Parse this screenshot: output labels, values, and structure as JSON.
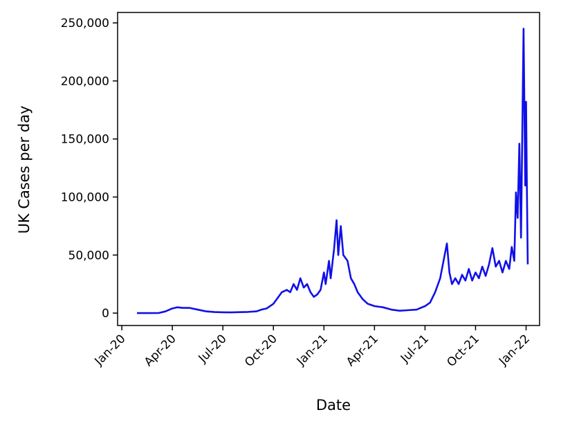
{
  "chart_data": {
    "type": "line",
    "x_label": "Date",
    "y_label": "UK Cases per day",
    "xlim": [
      -0.25,
      24.8
    ],
    "ylim": [
      -10700,
      259000
    ],
    "xticks": [
      {
        "value": 0,
        "label": "Jan-20"
      },
      {
        "value": 3,
        "label": "Apr-20"
      },
      {
        "value": 6,
        "label": "Jul-20"
      },
      {
        "value": 9,
        "label": "Oct-20"
      },
      {
        "value": 12,
        "label": "Jan-21"
      },
      {
        "value": 15,
        "label": "Apr-21"
      },
      {
        "value": 18,
        "label": "Jul-21"
      },
      {
        "value": 21,
        "label": "Oct-21"
      },
      {
        "value": 24,
        "label": "Jan-22"
      }
    ],
    "yticks": [
      0,
      {
        "value": 50000,
        "label": "50,000"
      },
      {
        "value": 100000,
        "label": "100,000"
      },
      {
        "value": 150000,
        "label": "150,000"
      },
      {
        "value": 200000,
        "label": "200,000"
      },
      {
        "value": 250000,
        "label": "250,000"
      }
    ],
    "series": [
      {
        "color": "#1010e8",
        "x": [
          0.9,
          1.5,
          2.2,
          2.6,
          3.0,
          3.3,
          3.6,
          4.0,
          4.5,
          5.0,
          5.5,
          6.0,
          6.5,
          7.0,
          7.5,
          8.0,
          8.3,
          8.6,
          9.0,
          9.3,
          9.5,
          9.8,
          10.0,
          10.2,
          10.4,
          10.6,
          10.8,
          11.0,
          11.2,
          11.4,
          11.6,
          11.8,
          12.0,
          12.1,
          12.3,
          12.4,
          12.6,
          12.75,
          12.85,
          13.0,
          13.15,
          13.4,
          13.6,
          13.8,
          14.0,
          14.3,
          14.6,
          15.0,
          15.5,
          16.0,
          16.5,
          17.0,
          17.5,
          18.0,
          18.3,
          18.6,
          18.9,
          19.1,
          19.3,
          19.45,
          19.6,
          19.8,
          20.0,
          20.2,
          20.4,
          20.6,
          20.8,
          21.0,
          21.2,
          21.4,
          21.6,
          21.8,
          22.0,
          22.2,
          22.4,
          22.6,
          22.8,
          23.0,
          23.15,
          23.3,
          23.4,
          23.5,
          23.6,
          23.7,
          23.85,
          23.95,
          24.0,
          24.05,
          24.1
        ],
        "values": [
          0,
          0,
          100,
          1500,
          4000,
          5000,
          4500,
          4500,
          3000,
          1500,
          900,
          700,
          600,
          800,
          1000,
          1500,
          3000,
          4000,
          8000,
          14000,
          18000,
          20000,
          18000,
          25000,
          20000,
          30000,
          22000,
          25000,
          18000,
          14000,
          16000,
          20000,
          35000,
          25000,
          45000,
          30000,
          55000,
          80000,
          50000,
          75000,
          50000,
          45000,
          30000,
          25000,
          18000,
          12000,
          8000,
          6000,
          5000,
          3000,
          2000,
          2500,
          3000,
          6000,
          9000,
          18000,
          30000,
          45000,
          60000,
          35000,
          25000,
          30000,
          25000,
          33000,
          28000,
          38000,
          28000,
          35000,
          30000,
          40000,
          32000,
          42000,
          56000,
          40000,
          45000,
          35000,
          45000,
          38000,
          57000,
          45000,
          104000,
          82000,
          146000,
          65000,
          245000,
          110000,
          182000,
          105000,
          42000
        ]
      }
    ]
  }
}
